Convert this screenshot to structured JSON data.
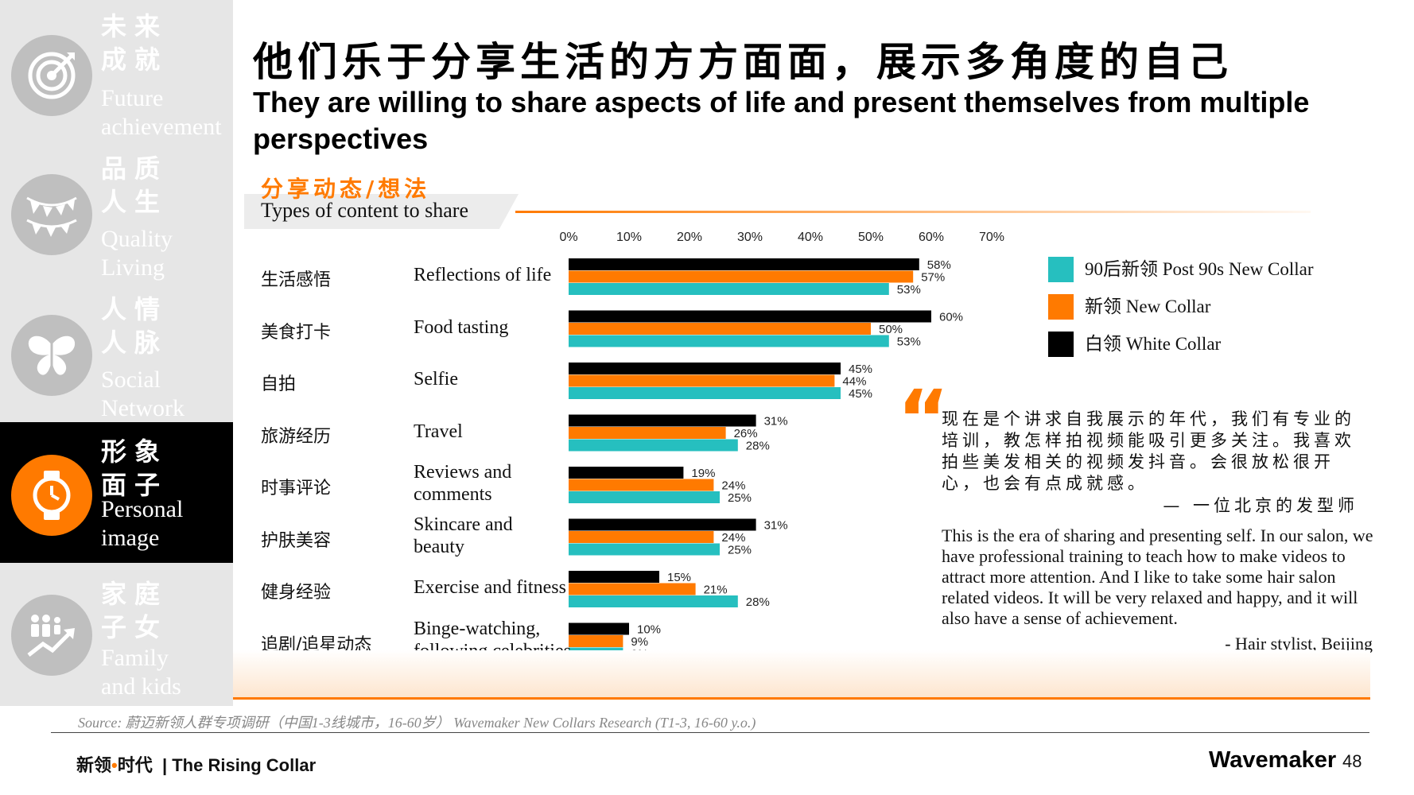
{
  "colors": {
    "accent": "#ff7a00",
    "series_post90": "#26bfbf",
    "series_new": "#ff7a00",
    "series_white": "#000000",
    "sidebar_bg": "#e6e6e6",
    "sidebar_active_bg": "#000000"
  },
  "sidebar": {
    "items": [
      {
        "cn": "未来\n成就",
        "en": "Future\nachievement",
        "icon": "target-icon",
        "active": false
      },
      {
        "cn": "品质\n人生",
        "en": "Quality\nLiving",
        "icon": "bunting-icon",
        "active": false
      },
      {
        "cn": "人情\n人脉",
        "en": "Social\nNetwork",
        "icon": "butterfly-icon",
        "active": false
      },
      {
        "cn": "形象\n面子",
        "en": "Personal\nimage",
        "icon": "watch-icon",
        "active": true
      },
      {
        "cn": "家庭\n子女",
        "en": "Family\nand kids",
        "icon": "family-growth-icon",
        "active": false
      }
    ]
  },
  "header": {
    "title_cn": "他们乐于分享生活的方方面面，展示多角度的自己",
    "title_en": "They are willing to share aspects of life and present themselves from multiple perspectives"
  },
  "section": {
    "title_cn": "分享动态/想法",
    "title_en": "Types of content to share"
  },
  "chart_data": {
    "type": "bar",
    "orientation": "horizontal",
    "title": "Types of content to share",
    "x_ticks": [
      "0%",
      "10%",
      "20%",
      "30%",
      "40%",
      "50%",
      "60%",
      "70%"
    ],
    "xlim": [
      0,
      70
    ],
    "unit": "%",
    "categories_cn": [
      "生活感悟",
      "美食打卡",
      "自拍",
      "旅游经历",
      "时事评论",
      "护肤美容",
      "健身经验",
      "追剧/追星动态"
    ],
    "categories_en": [
      "Reflections of life",
      "Food tasting",
      "Selfie",
      "Travel",
      "Reviews and\ncomments",
      "Skincare and\nbeauty",
      "Exercise and fitness",
      "Binge-watching,\nfollowing celebrities"
    ],
    "series": [
      {
        "name": "白领 White Collar",
        "key": "white",
        "values": [
          58,
          60,
          45,
          31,
          19,
          31,
          15,
          10
        ]
      },
      {
        "name": "新领 New Collar",
        "key": "new",
        "values": [
          57,
          50,
          44,
          26,
          24,
          24,
          21,
          9
        ]
      },
      {
        "name": "90后新领 Post 90s New Collar",
        "key": "post90",
        "values": [
          53,
          53,
          45,
          28,
          25,
          25,
          28,
          9
        ]
      }
    ],
    "legend_position": "right",
    "legend": [
      {
        "label": "90后新领 Post 90s New Collar",
        "key": "post90"
      },
      {
        "label": "新领 New Collar",
        "key": "new"
      },
      {
        "label": "白领 White Collar",
        "key": "white"
      }
    ]
  },
  "quote": {
    "mark": "“",
    "text_cn": "现在是个讲求自我展示的年代，我们有专业的培训，教怎样拍视频能吸引更多关注。我喜欢拍些美发相关的视频发抖音。会很放松很开心，也会有点成就感。",
    "attribution_cn": "— 一位北京的发型师",
    "text_en": "This is the era of sharing and presenting self. In our salon, we have professional training to teach how to make videos to attract more attention. And I like to take some hair salon related videos. It will be very relaxed and happy, and it will also have a sense of achievement.",
    "attribution_en": "- Hair stylist, Beijing"
  },
  "footer": {
    "source": "Source: 蔚迈新领人群专项调研（中国1-3线城市，16-60岁） Wavemaker New Collars Research (T1-3, 16-60 y.o.)",
    "brand_cn_a": "新领",
    "brand_dot": "•",
    "brand_cn_b": "时代",
    "brand_en": "| The Rising Collar",
    "company": "Wavemaker",
    "page_number": "48"
  }
}
